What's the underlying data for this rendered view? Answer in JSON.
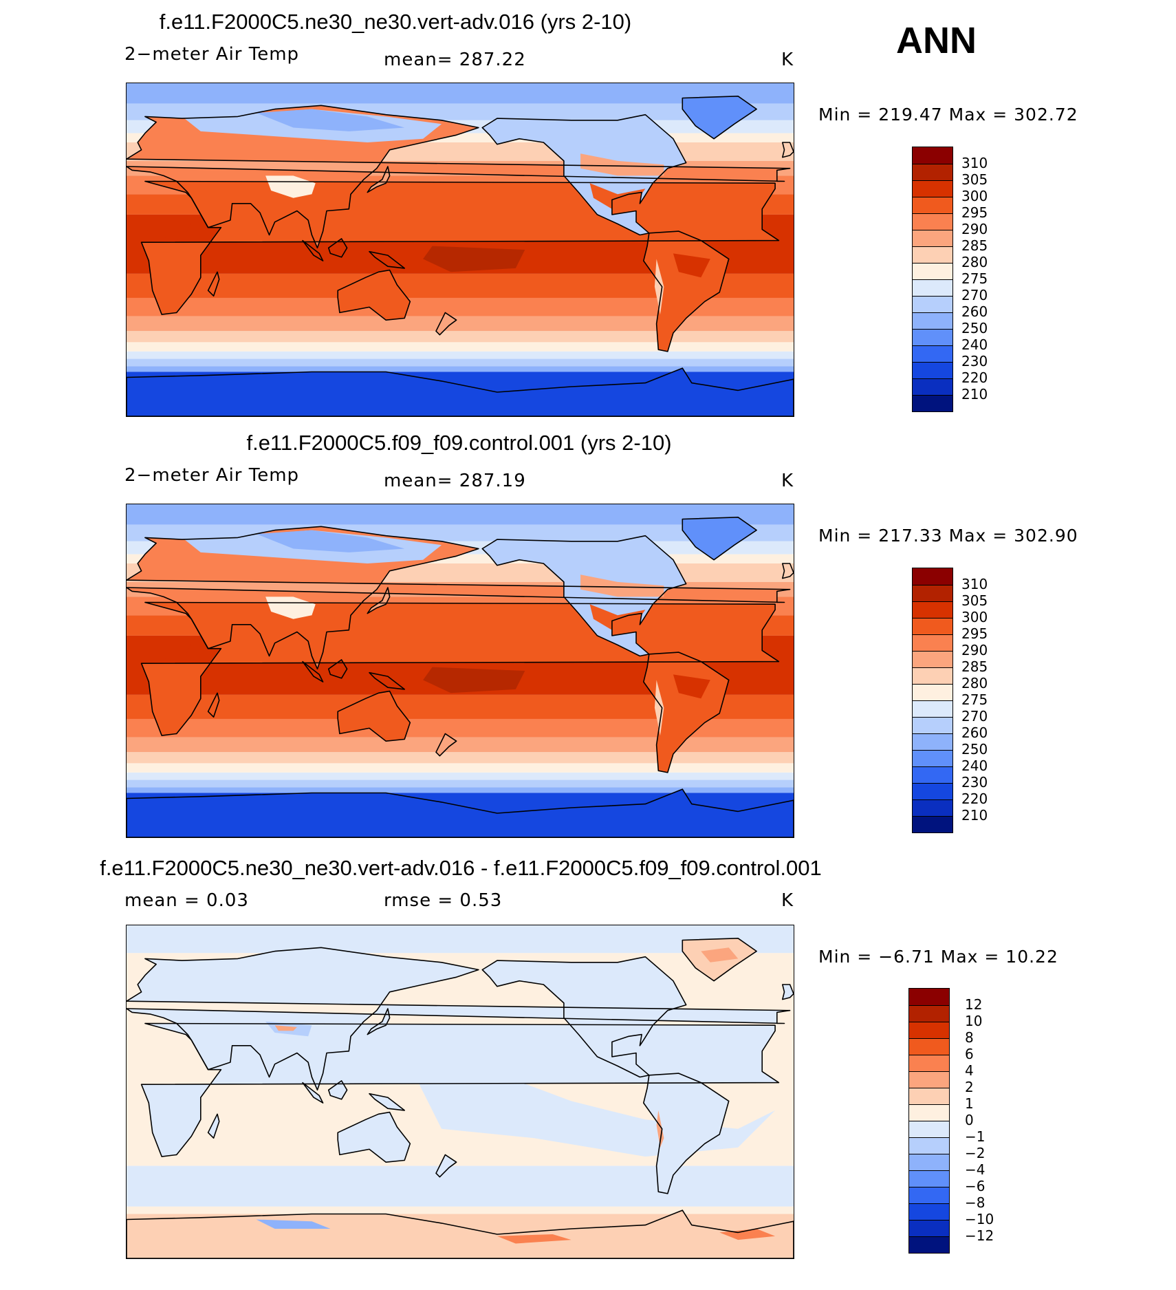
{
  "season": "ANN",
  "panels": [
    {
      "title": "f.e11.F2000C5.ne30_ne30.vert-adv.016 (yrs 2-10)",
      "left_label": "2−meter Air Temp",
      "center_label": "mean=  287.22",
      "units": "K",
      "minmax": "Min  =  219.47  Max  =  302.72",
      "colorbar_ticks": [
        "310",
        "305",
        "300",
        "295",
        "290",
        "285",
        "280",
        "275",
        "270",
        "260",
        "250",
        "240",
        "230",
        "220",
        "210"
      ],
      "colorbar_colors": [
        "#8b0000",
        "#b22200",
        "#d73200",
        "#f05a1e",
        "#fa8150",
        "#fba57e",
        "#fdd0b4",
        "#fef0e0",
        "#dce9fb",
        "#b6cffc",
        "#8eb2fb",
        "#6090fa",
        "#3368f3",
        "#1547e0",
        "#0a2fc0",
        "#00137e"
      ],
      "map_scheme": "abs"
    },
    {
      "title": "f.e11.F2000C5.f09_f09.control.001 (yrs 2-10)",
      "left_label": "2−meter Air Temp",
      "center_label": "mean=  287.19",
      "units": "K",
      "minmax": "Min  =  217.33  Max  =  302.90",
      "colorbar_ticks": [
        "310",
        "305",
        "300",
        "295",
        "290",
        "285",
        "280",
        "275",
        "270",
        "260",
        "250",
        "240",
        "230",
        "220",
        "210"
      ],
      "colorbar_colors": [
        "#8b0000",
        "#b22200",
        "#d73200",
        "#f05a1e",
        "#fa8150",
        "#fba57e",
        "#fdd0b4",
        "#fef0e0",
        "#dce9fb",
        "#b6cffc",
        "#8eb2fb",
        "#6090fa",
        "#3368f3",
        "#1547e0",
        "#0a2fc0",
        "#00137e"
      ],
      "map_scheme": "abs"
    },
    {
      "title": "f.e11.F2000C5.ne30_ne30.vert-adv.016 - f.e11.F2000C5.f09_f09.control.001",
      "left_label": "mean  =      0.03",
      "center_label": "rmse  =      0.53",
      "units": "K",
      "minmax": "Min  =    −6.71  Max  =     10.22",
      "colorbar_ticks": [
        "12",
        "10",
        "8",
        "6",
        "4",
        "2",
        "1",
        "0",
        "−1",
        "−2",
        "−4",
        "−6",
        "−8",
        "−10",
        "−12"
      ],
      "colorbar_colors": [
        "#8b0000",
        "#b22200",
        "#d73200",
        "#f05a1e",
        "#fa8150",
        "#fba57e",
        "#fdd0b4",
        "#fef0e0",
        "#dce9fb",
        "#b6cffc",
        "#8eb2fb",
        "#6090fa",
        "#3368f3",
        "#1547e0",
        "#0a2fc0",
        "#00137e"
      ],
      "map_scheme": "diff"
    }
  ]
}
